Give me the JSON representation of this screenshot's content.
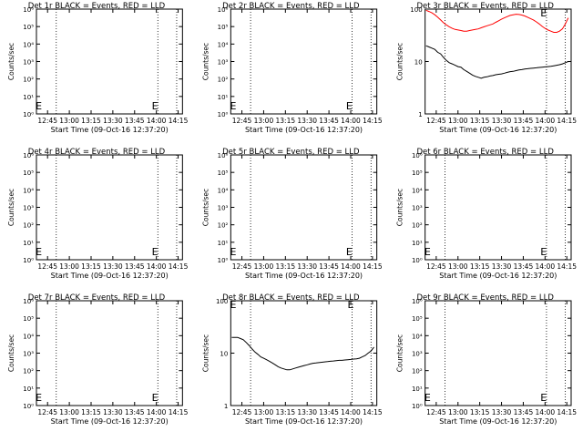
{
  "page": {
    "xlabel": "Start Time (09-Oct-16 12:37:20)",
    "ylabel": "Counts/sec",
    "x_ticks": [
      "12:45",
      "13:00",
      "13:15",
      "13:30",
      "13:45",
      "14:00",
      "14:15"
    ],
    "x_tick_minutes": [
      45,
      60,
      75,
      90,
      105,
      120,
      135
    ],
    "xlim_minutes": [
      37.33,
      138
    ],
    "vlines_minutes": [
      51,
      121,
      134
    ],
    "colors": {
      "events": "#000000",
      "lld": "#ff0000",
      "axes": "#000000"
    },
    "marker_glyph": "E"
  },
  "chart_data": [
    {
      "type": "line",
      "title": "Det 1r BLACK = Events, RED = LLD",
      "yscale": "log",
      "ylim": [
        1,
        1000000
      ],
      "y_ticks": [
        "10⁰",
        "10¹",
        "10²",
        "10³",
        "10⁴",
        "10⁵",
        "10⁶"
      ],
      "y_tick_values": [
        1,
        10,
        100,
        1000,
        10000,
        100000,
        1000000
      ],
      "series": [],
      "markers": [
        {
          "x": 39,
          "y": 3
        },
        {
          "x": 119,
          "y": 3
        }
      ]
    },
    {
      "type": "line",
      "title": "Det 2r BLACK = Events, RED = LLD",
      "yscale": "log",
      "ylim": [
        1,
        1000000
      ],
      "y_ticks": [
        "10⁰",
        "10¹",
        "10²",
        "10³",
        "10⁴",
        "10⁵",
        "10⁶"
      ],
      "y_tick_values": [
        1,
        10,
        100,
        1000,
        10000,
        100000,
        1000000
      ],
      "series": [],
      "markers": [
        {
          "x": 39,
          "y": 3
        },
        {
          "x": 119,
          "y": 3
        }
      ]
    },
    {
      "type": "line",
      "title": "Det 3r BLACK = Events, RED = LLD",
      "yscale": "log",
      "ylim": [
        1,
        100
      ],
      "y_ticks": [
        "1",
        "10",
        "100"
      ],
      "y_tick_values": [
        1,
        10,
        100
      ],
      "series": [
        {
          "color": "#ff0000",
          "x": [
            38,
            40,
            42,
            44,
            46,
            48,
            50,
            52,
            54,
            56,
            58,
            60,
            62,
            64,
            66,
            68,
            70,
            72,
            74,
            76,
            78,
            80,
            82,
            84,
            86,
            88,
            90,
            92,
            94,
            96,
            98,
            100,
            102,
            104,
            106,
            108,
            110,
            112,
            114,
            116,
            118,
            120,
            122,
            124,
            126,
            128,
            130,
            132,
            134,
            136
          ],
          "y": [
            95,
            90,
            85,
            78,
            70,
            62,
            55,
            50,
            46,
            43,
            41,
            40,
            39,
            38,
            38,
            39,
            40,
            41,
            42,
            44,
            46,
            48,
            50,
            52,
            56,
            60,
            64,
            68,
            72,
            76,
            78,
            80,
            79,
            77,
            74,
            70,
            66,
            62,
            57,
            52,
            47,
            43,
            40,
            38,
            36,
            36,
            38,
            42,
            52,
            68
          ]
        },
        {
          "color": "#000000",
          "x": [
            38,
            40,
            42,
            44,
            46,
            48,
            50,
            52,
            54,
            56,
            58,
            60,
            62,
            64,
            66,
            68,
            70,
            72,
            74,
            76,
            78,
            80,
            82,
            84,
            86,
            88,
            90,
            92,
            94,
            96,
            98,
            100,
            102,
            104,
            106,
            108,
            110,
            112,
            114,
            116,
            118,
            120,
            122,
            124,
            126,
            128,
            130,
            132,
            134,
            136
          ],
          "y": [
            20,
            19,
            18,
            17,
            15,
            14,
            12,
            10.5,
            9.5,
            9,
            8.5,
            8,
            7.8,
            7,
            6.5,
            6,
            5.5,
            5.2,
            5,
            4.8,
            5,
            5.1,
            5.3,
            5.4,
            5.6,
            5.7,
            5.8,
            6,
            6.2,
            6.4,
            6.5,
            6.7,
            6.9,
            7,
            7.2,
            7.3,
            7.4,
            7.5,
            7.6,
            7.7,
            7.8,
            7.9,
            8,
            8.1,
            8.3,
            8.5,
            8.7,
            9,
            9.5,
            10
          ]
        }
      ],
      "markers": [
        {
          "x": 119,
          "y": 85
        }
      ]
    },
    {
      "type": "line",
      "title": "Det 4r BLACK = Events, RED = LLD",
      "yscale": "log",
      "ylim": [
        1,
        1000000
      ],
      "y_ticks": [
        "10⁰",
        "10¹",
        "10²",
        "10³",
        "10⁴",
        "10⁵",
        "10⁶"
      ],
      "y_tick_values": [
        1,
        10,
        100,
        1000,
        10000,
        100000,
        1000000
      ],
      "series": [],
      "markers": [
        {
          "x": 39,
          "y": 3
        },
        {
          "x": 119,
          "y": 3
        }
      ]
    },
    {
      "type": "line",
      "title": "Det 5r BLACK = Events, RED = LLD",
      "yscale": "log",
      "ylim": [
        1,
        1000000
      ],
      "y_ticks": [
        "10⁰",
        "10¹",
        "10²",
        "10³",
        "10⁴",
        "10⁵",
        "10⁶"
      ],
      "y_tick_values": [
        1,
        10,
        100,
        1000,
        10000,
        100000,
        1000000
      ],
      "series": [],
      "markers": [
        {
          "x": 39,
          "y": 3
        },
        {
          "x": 119,
          "y": 3
        }
      ]
    },
    {
      "type": "line",
      "title": "Det 6r BLACK = Events, RED = LLD",
      "yscale": "log",
      "ylim": [
        1,
        1000000
      ],
      "y_ticks": [
        "10⁰",
        "10¹",
        "10²",
        "10³",
        "10⁴",
        "10⁵",
        "10⁶"
      ],
      "y_tick_values": [
        1,
        10,
        100,
        1000,
        10000,
        100000,
        1000000
      ],
      "series": [],
      "markers": [
        {
          "x": 39,
          "y": 3
        },
        {
          "x": 119,
          "y": 3
        }
      ]
    },
    {
      "type": "line",
      "title": "Det 7r BLACK = Events, RED = LLD",
      "yscale": "log",
      "ylim": [
        1,
        1000000
      ],
      "y_ticks": [
        "10⁰",
        "10¹",
        "10²",
        "10³",
        "10⁴",
        "10⁵",
        "10⁶"
      ],
      "y_tick_values": [
        1,
        10,
        100,
        1000,
        10000,
        100000,
        1000000
      ],
      "series": [],
      "markers": [
        {
          "x": 39,
          "y": 3
        },
        {
          "x": 119,
          "y": 3
        }
      ]
    },
    {
      "type": "line",
      "title": "Det 8r BLACK = Events, RED = LLD",
      "yscale": "log",
      "ylim": [
        1,
        100
      ],
      "y_ticks": [
        "1",
        "10",
        "100"
      ],
      "y_tick_values": [
        1,
        10,
        100
      ],
      "series": [
        {
          "color": "#000000",
          "x": [
            38,
            40,
            42,
            44,
            46,
            48,
            50,
            52,
            54,
            56,
            58,
            60,
            62,
            64,
            66,
            68,
            70,
            72,
            74,
            76,
            78,
            80,
            82,
            84,
            86,
            88,
            90,
            92,
            94,
            96,
            98,
            100,
            102,
            104,
            106,
            108,
            110,
            112,
            114,
            116,
            118,
            120,
            122,
            124,
            126,
            128,
            130,
            132,
            134,
            136
          ],
          "y": [
            20,
            20,
            20,
            19,
            18,
            16,
            14,
            12,
            10.5,
            9.5,
            8.5,
            8,
            7.5,
            7,
            6.5,
            6,
            5.5,
            5.2,
            5,
            4.8,
            4.8,
            5,
            5.2,
            5.4,
            5.6,
            5.8,
            6,
            6.2,
            6.4,
            6.5,
            6.6,
            6.7,
            6.8,
            6.9,
            7,
            7.1,
            7.2,
            7.3,
            7.3,
            7.4,
            7.5,
            7.6,
            7.7,
            7.8,
            8,
            8.5,
            9,
            10,
            11,
            13
          ]
        }
      ],
      "markers": [
        {
          "x": 39,
          "y": 85
        },
        {
          "x": 120,
          "y": 85
        }
      ]
    },
    {
      "type": "line",
      "title": "Det 9r BLACK = Events, RED = LLD",
      "yscale": "log",
      "ylim": [
        1,
        1000000
      ],
      "y_ticks": [
        "10⁰",
        "10¹",
        "10²",
        "10³",
        "10⁴",
        "10⁵",
        "10⁶"
      ],
      "y_tick_values": [
        1,
        10,
        100,
        1000,
        10000,
        100000,
        1000000
      ],
      "series": [],
      "markers": [
        {
          "x": 39,
          "y": 3
        },
        {
          "x": 119,
          "y": 3
        }
      ]
    }
  ]
}
